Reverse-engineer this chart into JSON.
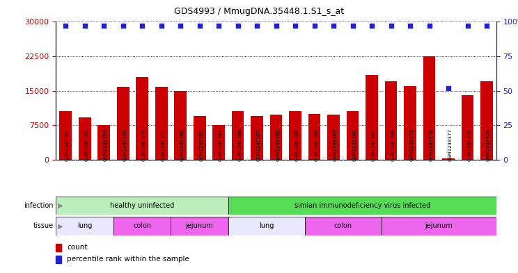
{
  "title": "GDS4993 / MmugDNA.35448.1.S1_s_at",
  "samples": [
    "GSM1249391",
    "GSM1249392",
    "GSM1249393",
    "GSM1249369",
    "GSM1249370",
    "GSM1249371",
    "GSM1249380",
    "GSM1249381",
    "GSM1249382",
    "GSM1249386",
    "GSM1249387",
    "GSM1249388",
    "GSM1249389",
    "GSM1249390",
    "GSM1249365",
    "GSM1249366",
    "GSM1249367",
    "GSM1249368",
    "GSM1249375",
    "GSM1249376",
    "GSM1249377",
    "GSM1249378",
    "GSM1249379"
  ],
  "counts": [
    10500,
    9200,
    7500,
    15800,
    18000,
    15800,
    15000,
    9500,
    7500,
    10500,
    9500,
    9800,
    10500,
    10000,
    9800,
    10500,
    18500,
    17000,
    16000,
    22500,
    300,
    14000,
    17000
  ],
  "percentiles": [
    97,
    97,
    97,
    97,
    97,
    97,
    97,
    97,
    97,
    97,
    97,
    97,
    97,
    97,
    97,
    97,
    97,
    97,
    97,
    97,
    52,
    97,
    97
  ],
  "bar_color": "#CC0000",
  "dot_color": "#2222CC",
  "left_axis_color": "#CC0000",
  "right_axis_color": "#2222CC",
  "ylim_left": [
    0,
    30000
  ],
  "ylim_right": [
    0,
    100
  ],
  "yticks_left": [
    0,
    7500,
    15000,
    22500,
    30000
  ],
  "yticks_right": [
    0,
    25,
    50,
    75,
    100
  ],
  "infection_groups": [
    {
      "label": "healthy uninfected",
      "start": 0,
      "end": 9,
      "color": "#BBEEBB"
    },
    {
      "label": "simian immunodeficiency virus infected",
      "start": 9,
      "end": 23,
      "color": "#55DD55"
    }
  ],
  "tissue_groups": [
    {
      "label": "lung",
      "start": 0,
      "end": 3,
      "color": "#E8E8FF"
    },
    {
      "label": "colon",
      "start": 3,
      "end": 6,
      "color": "#EE66EE"
    },
    {
      "label": "jejunum",
      "start": 6,
      "end": 9,
      "color": "#EE66EE"
    },
    {
      "label": "lung",
      "start": 9,
      "end": 13,
      "color": "#E8E8FF"
    },
    {
      "label": "colon",
      "start": 13,
      "end": 17,
      "color": "#EE66EE"
    },
    {
      "label": "jejunum",
      "start": 17,
      "end": 23,
      "color": "#EE66EE"
    }
  ],
  "xtick_bg": "#D8D8D8",
  "label_infection": "infection",
  "label_tissue": "tissue",
  "legend_count": "count",
  "legend_percentile": "percentile rank within the sample"
}
